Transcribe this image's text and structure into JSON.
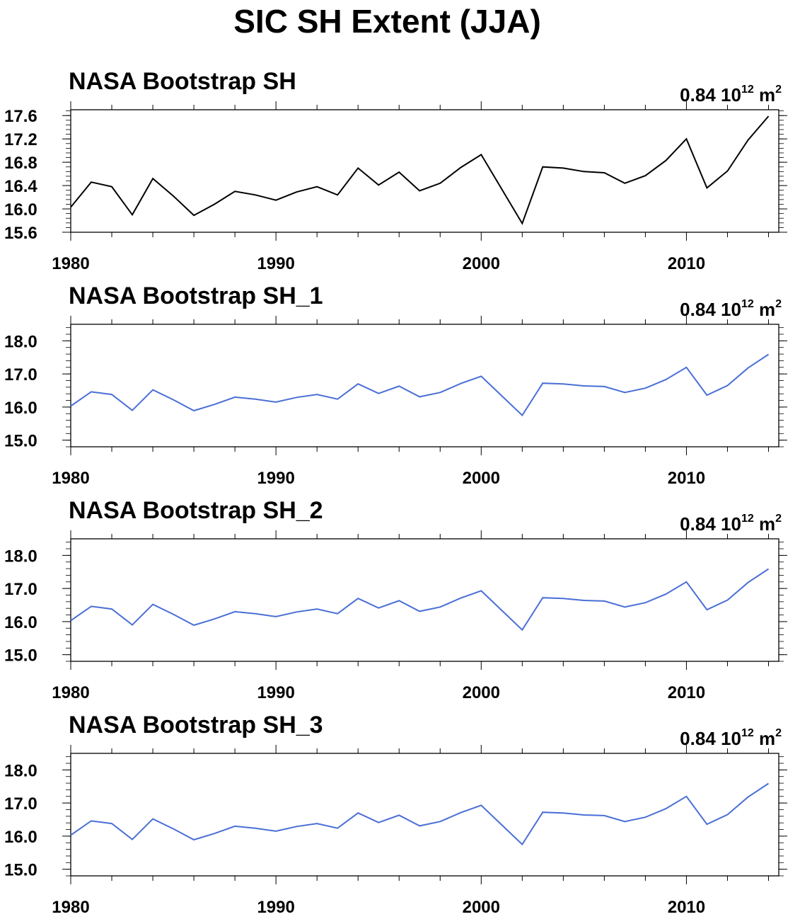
{
  "title": "SIC SH Extent (JJA)",
  "colors": {
    "first": "#000000",
    "others": "#4a6fd6"
  },
  "panels": [
    {
      "title": "NASA Bootstrap SH",
      "value": "0.84",
      "units_base": "10",
      "units_exp": "12",
      "units_unit": "m",
      "units_unit_exp": "2"
    },
    {
      "title": "NASA Bootstrap SH_1",
      "value": "0.84",
      "units_base": "10",
      "units_exp": "12",
      "units_unit": "m",
      "units_unit_exp": "2"
    },
    {
      "title": "NASA Bootstrap SH_2",
      "value": "0.84",
      "units_base": "10",
      "units_exp": "12",
      "units_unit": "m",
      "units_unit_exp": "2"
    },
    {
      "title": "NASA Bootstrap SH_3",
      "value": "0.84",
      "units_base": "10",
      "units_exp": "12",
      "units_unit": "m",
      "units_unit_exp": "2"
    }
  ],
  "chart_data": [
    {
      "type": "line",
      "title": "NASA Bootstrap SH",
      "x": [
        1980,
        1981,
        1982,
        1983,
        1984,
        1985,
        1986,
        1987,
        1988,
        1989,
        1990,
        1991,
        1992,
        1993,
        1994,
        1995,
        1996,
        1997,
        1998,
        1999,
        2000,
        2001,
        2002,
        2003,
        2004,
        2005,
        2006,
        2007,
        2008,
        2009,
        2010,
        2011,
        2012,
        2013,
        2014
      ],
      "series": [
        {
          "values": [
            16.03,
            16.46,
            16.38,
            15.9,
            16.52,
            16.22,
            15.89,
            16.08,
            16.3,
            16.24,
            16.15,
            16.29,
            16.38,
            16.24,
            16.7,
            16.41,
            16.63,
            16.31,
            16.44,
            16.71,
            16.93,
            16.34,
            15.75,
            16.72,
            16.7,
            16.64,
            16.62,
            16.44,
            16.57,
            16.83,
            17.2,
            16.36,
            16.65,
            17.18,
            17.59
          ]
        }
      ],
      "xlim": [
        1980,
        2014.5
      ],
      "ylim": [
        15.6,
        17.7
      ],
      "x_ticks": [
        "1980",
        "1990",
        "2000",
        "2010"
      ],
      "y_ticks": [
        "15.6",
        "16.0",
        "16.4",
        "16.8",
        "17.2",
        "17.6"
      ],
      "grid": false
    },
    {
      "type": "line",
      "title": "NASA Bootstrap SH_1",
      "x": [
        1980,
        1981,
        1982,
        1983,
        1984,
        1985,
        1986,
        1987,
        1988,
        1989,
        1990,
        1991,
        1992,
        1993,
        1994,
        1995,
        1996,
        1997,
        1998,
        1999,
        2000,
        2001,
        2002,
        2003,
        2004,
        2005,
        2006,
        2007,
        2008,
        2009,
        2010,
        2011,
        2012,
        2013,
        2014
      ],
      "series": [
        {
          "values": [
            16.03,
            16.46,
            16.38,
            15.9,
            16.52,
            16.22,
            15.89,
            16.08,
            16.3,
            16.24,
            16.15,
            16.29,
            16.38,
            16.24,
            16.7,
            16.41,
            16.63,
            16.31,
            16.44,
            16.71,
            16.93,
            16.34,
            15.75,
            16.72,
            16.7,
            16.64,
            16.62,
            16.44,
            16.57,
            16.83,
            17.2,
            16.36,
            16.65,
            17.18,
            17.59
          ]
        }
      ],
      "xlim": [
        1980,
        2014.5
      ],
      "ylim": [
        14.8,
        18.5
      ],
      "x_ticks": [
        "1980",
        "1990",
        "2000",
        "2010"
      ],
      "y_ticks": [
        "15.0",
        "16.0",
        "17.0",
        "18.0"
      ],
      "grid": false
    },
    {
      "type": "line",
      "title": "NASA Bootstrap SH_2",
      "x": [
        1980,
        1981,
        1982,
        1983,
        1984,
        1985,
        1986,
        1987,
        1988,
        1989,
        1990,
        1991,
        1992,
        1993,
        1994,
        1995,
        1996,
        1997,
        1998,
        1999,
        2000,
        2001,
        2002,
        2003,
        2004,
        2005,
        2006,
        2007,
        2008,
        2009,
        2010,
        2011,
        2012,
        2013,
        2014
      ],
      "series": [
        {
          "values": [
            16.03,
            16.46,
            16.38,
            15.9,
            16.52,
            16.22,
            15.89,
            16.08,
            16.3,
            16.24,
            16.15,
            16.29,
            16.38,
            16.24,
            16.7,
            16.41,
            16.63,
            16.31,
            16.44,
            16.71,
            16.93,
            16.34,
            15.75,
            16.72,
            16.7,
            16.64,
            16.62,
            16.44,
            16.57,
            16.83,
            17.2,
            16.36,
            16.65,
            17.18,
            17.59
          ]
        }
      ],
      "xlim": [
        1980,
        2014.5
      ],
      "ylim": [
        14.8,
        18.5
      ],
      "x_ticks": [
        "1980",
        "1990",
        "2000",
        "2010"
      ],
      "y_ticks": [
        "15.0",
        "16.0",
        "17.0",
        "18.0"
      ],
      "grid": false
    },
    {
      "type": "line",
      "title": "NASA Bootstrap SH_3",
      "x": [
        1980,
        1981,
        1982,
        1983,
        1984,
        1985,
        1986,
        1987,
        1988,
        1989,
        1990,
        1991,
        1992,
        1993,
        1994,
        1995,
        1996,
        1997,
        1998,
        1999,
        2000,
        2001,
        2002,
        2003,
        2004,
        2005,
        2006,
        2007,
        2008,
        2009,
        2010,
        2011,
        2012,
        2013,
        2014
      ],
      "series": [
        {
          "values": [
            16.03,
            16.46,
            16.38,
            15.9,
            16.52,
            16.22,
            15.89,
            16.08,
            16.3,
            16.24,
            16.15,
            16.29,
            16.38,
            16.24,
            16.7,
            16.41,
            16.63,
            16.31,
            16.44,
            16.71,
            16.93,
            16.34,
            15.75,
            16.72,
            16.7,
            16.64,
            16.62,
            16.44,
            16.57,
            16.83,
            17.2,
            16.36,
            16.65,
            17.18,
            17.59
          ]
        }
      ],
      "xlim": [
        1980,
        2014.5
      ],
      "ylim": [
        14.8,
        18.5
      ],
      "x_ticks": [
        "1980",
        "1990",
        "2000",
        "2010"
      ],
      "y_ticks": [
        "15.0",
        "16.0",
        "17.0",
        "18.0"
      ],
      "grid": false
    }
  ]
}
